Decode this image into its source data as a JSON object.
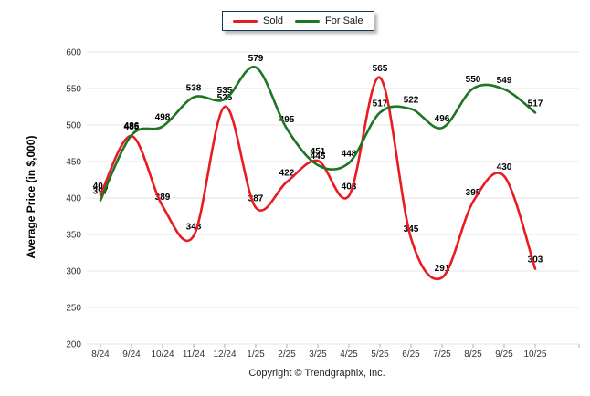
{
  "legend": {
    "items": [
      {
        "label": "Sold",
        "color": "#e81b21"
      },
      {
        "label": "For Sale",
        "color": "#1e7522"
      }
    ]
  },
  "y_axis": {
    "title": "Average Price (in $,000)"
  },
  "footer": {
    "text": "Copyright © Trendgraphix, Inc."
  },
  "chart_data": {
    "type": "line",
    "title": "",
    "xlabel": "",
    "ylabel": "Average Price (in $,000)",
    "categories": [
      "8/24",
      "9/24",
      "10/24",
      "11/24",
      "12/24",
      "1/25",
      "2/25",
      "3/25",
      "4/25",
      "5/25",
      "6/25",
      "7/25",
      "8/25",
      "9/25",
      "10/25"
    ],
    "series": [
      {
        "name": "Sold",
        "color": "#e81b21",
        "values": [
          404,
          485,
          389,
          348,
          525,
          387,
          422,
          451,
          403,
          565,
          345,
          291,
          395,
          430,
          303
        ]
      },
      {
        "name": "For Sale",
        "color": "#1e7522",
        "values": [
          397,
          486,
          498,
          538,
          535,
          579,
          495,
          445,
          448,
          517,
          522,
          496,
          550,
          549,
          517
        ]
      }
    ],
    "ylim": [
      200,
      600
    ],
    "yticks": [
      200,
      250,
      300,
      350,
      400,
      450,
      500,
      550,
      600
    ],
    "grid": true,
    "legend_position": "top",
    "smooth": true,
    "point_labels": true
  }
}
